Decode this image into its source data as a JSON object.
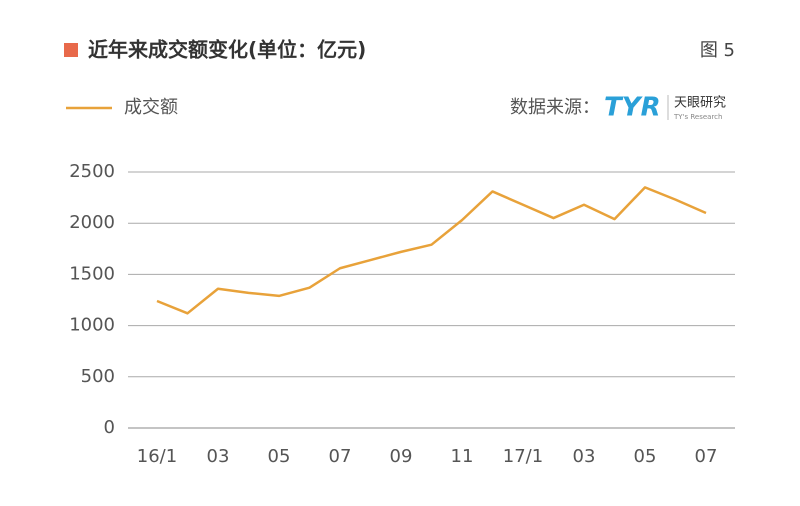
{
  "chart_data": {
    "type": "line",
    "title": "近年来成交额变化(单位：亿元)",
    "categories": [
      "16/1",
      null,
      "03",
      null,
      "05",
      null,
      "07",
      null,
      "09",
      null,
      "11",
      null,
      "17/1",
      null,
      "03",
      null,
      "05",
      null,
      "07"
    ],
    "series": [
      {
        "name": "成交额",
        "color": "#e8a23a",
        "values": [
          1240,
          1120,
          1360,
          1320,
          1290,
          1370,
          1560,
          1640,
          1720,
          1790,
          2030,
          2310,
          2180,
          2050,
          2180,
          2040,
          2350,
          2230,
          2100
        ]
      }
    ],
    "ylim": [
      0,
      2500
    ],
    "yticks": [
      0,
      500,
      1000,
      1500,
      2000,
      2500
    ],
    "grid": true
  },
  "figure_label": "图 5",
  "source": {
    "label": "数据来源：",
    "logo": "TYR",
    "name": "天眼研究",
    "name_en": "TY's Research"
  }
}
